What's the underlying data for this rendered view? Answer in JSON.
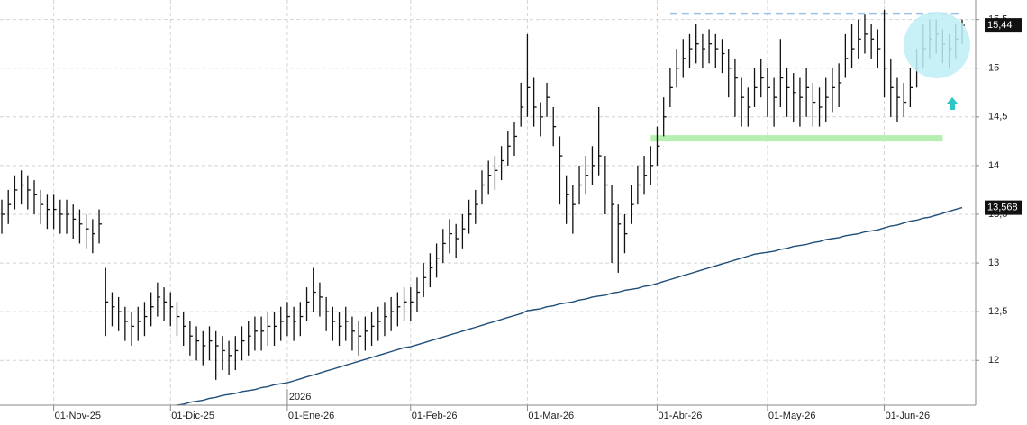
{
  "chart_data": {
    "type": "ohlc",
    "year_marker": "2026",
    "categories": [
      null,
      null,
      null,
      null,
      null,
      null,
      null,
      null,
      "01-Nov-25",
      null,
      null,
      null,
      null,
      null,
      null,
      null,
      null,
      null,
      null,
      null,
      null,
      null,
      null,
      null,
      null,
      null,
      "01-Dic-25",
      null,
      null,
      null,
      null,
      null,
      null,
      null,
      null,
      null,
      null,
      null,
      null,
      null,
      null,
      null,
      null,
      null,
      "01-Ene-26",
      null,
      null,
      null,
      null,
      null,
      null,
      null,
      null,
      null,
      null,
      null,
      null,
      null,
      null,
      null,
      null,
      null,
      null,
      "01-Feb-26",
      null,
      null,
      null,
      null,
      null,
      null,
      null,
      null,
      null,
      null,
      null,
      null,
      null,
      null,
      null,
      null,
      null,
      "01-Mar-26",
      null,
      null,
      null,
      null,
      null,
      null,
      null,
      null,
      null,
      null,
      null,
      null,
      null,
      null,
      null,
      null,
      null,
      null,
      null,
      "01-Abr-26",
      null,
      null,
      null,
      null,
      null,
      null,
      null,
      null,
      null,
      null,
      null,
      null,
      null,
      null,
      null,
      null,
      "01-May-26",
      null,
      null,
      null,
      null,
      null,
      null,
      null,
      null,
      null,
      null,
      null,
      null,
      null,
      null,
      null,
      null,
      null,
      "01-Jun-26",
      null,
      null,
      null,
      null,
      null,
      null,
      null,
      null,
      null,
      null,
      null,
      null
    ],
    "high": [
      13.65,
      13.75,
      13.9,
      13.95,
      13.9,
      13.85,
      13.75,
      13.7,
      13.7,
      13.65,
      13.65,
      13.6,
      13.55,
      13.5,
      13.45,
      13.55,
      12.95,
      12.7,
      12.65,
      12.55,
      12.5,
      12.55,
      12.6,
      12.7,
      12.8,
      12.75,
      12.7,
      12.6,
      12.5,
      12.4,
      12.35,
      12.3,
      12.35,
      12.3,
      12.25,
      12.2,
      12.25,
      12.35,
      12.4,
      12.45,
      12.45,
      12.5,
      12.5,
      12.55,
      12.6,
      12.55,
      12.6,
      12.75,
      12.95,
      12.8,
      12.65,
      12.55,
      12.5,
      12.55,
      12.45,
      12.4,
      12.45,
      12.5,
      12.55,
      12.6,
      12.65,
      12.7,
      12.75,
      12.75,
      12.85,
      13.0,
      13.1,
      13.2,
      13.35,
      13.45,
      13.4,
      13.5,
      13.65,
      13.75,
      13.95,
      14.05,
      14.1,
      14.2,
      14.35,
      14.45,
      14.85,
      15.35,
      14.9,
      14.65,
      14.85,
      14.6,
      14.3,
      13.9,
      13.8,
      14.0,
      14.1,
      14.2,
      14.6,
      14.1,
      13.8,
      13.6,
      13.5,
      13.8,
      14.0,
      14.1,
      14.2,
      14.4,
      14.7,
      15.0,
      15.2,
      15.3,
      15.35,
      15.45,
      15.35,
      15.4,
      15.35,
      15.3,
      15.2,
      15.1,
      14.9,
      14.8,
      15.0,
      15.1,
      15.0,
      14.9,
      15.3,
      15.0,
      14.95,
      14.9,
      15.0,
      14.85,
      14.8,
      14.9,
      15.0,
      15.05,
      15.35,
      15.45,
      15.5,
      15.55,
      15.45,
      15.4,
      15.6,
      15.1,
      14.9,
      14.85,
      15.0,
      15.2,
      15.45,
      15.5,
      15.5,
      15.4,
      15.35,
      15.45,
      15.5
    ],
    "low": [
      13.3,
      13.4,
      13.55,
      13.6,
      13.55,
      13.5,
      13.4,
      13.35,
      13.35,
      13.3,
      13.3,
      13.25,
      13.2,
      13.15,
      13.1,
      13.2,
      12.25,
      12.35,
      12.3,
      12.2,
      12.15,
      12.2,
      12.25,
      12.35,
      12.45,
      12.4,
      12.35,
      12.25,
      12.15,
      12.05,
      12.0,
      11.95,
      12.0,
      11.8,
      11.9,
      11.85,
      11.9,
      12.0,
      12.05,
      12.1,
      12.1,
      12.15,
      12.15,
      12.2,
      12.25,
      12.2,
      12.25,
      12.4,
      12.5,
      12.45,
      12.3,
      12.2,
      12.15,
      12.2,
      12.1,
      12.05,
      12.1,
      12.15,
      12.2,
      12.25,
      12.3,
      12.35,
      12.4,
      12.4,
      12.5,
      12.65,
      12.75,
      12.85,
      13.0,
      13.1,
      13.05,
      13.15,
      13.3,
      13.4,
      13.6,
      13.7,
      13.75,
      13.85,
      14.0,
      14.1,
      14.4,
      14.5,
      14.4,
      14.3,
      14.5,
      14.2,
      13.6,
      13.4,
      13.3,
      13.6,
      13.7,
      13.8,
      13.9,
      13.5,
      13.0,
      12.9,
      13.1,
      13.4,
      13.6,
      13.7,
      13.8,
      14.0,
      14.3,
      14.6,
      14.8,
      14.9,
      15.0,
      15.05,
      15.0,
      15.05,
      15.0,
      14.95,
      14.7,
      14.5,
      14.4,
      14.4,
      14.6,
      14.7,
      14.5,
      14.4,
      14.6,
      14.5,
      14.45,
      14.4,
      14.5,
      14.4,
      14.4,
      14.45,
      14.55,
      14.6,
      14.9,
      15.0,
      15.1,
      15.15,
      15.1,
      15.0,
      14.7,
      14.5,
      14.45,
      14.5,
      14.6,
      14.8,
      15.0,
      15.1,
      15.15,
      15.05,
      15.0,
      15.1,
      15.25
    ],
    "close": [
      13.5,
      13.6,
      13.75,
      13.8,
      13.75,
      13.7,
      13.6,
      13.55,
      13.55,
      13.5,
      13.5,
      13.45,
      13.4,
      13.35,
      13.3,
      13.4,
      12.6,
      12.55,
      12.5,
      12.4,
      12.35,
      12.4,
      12.45,
      12.55,
      12.65,
      12.6,
      12.55,
      12.45,
      12.35,
      12.25,
      12.2,
      12.15,
      12.2,
      12.15,
      12.1,
      12.05,
      12.1,
      12.2,
      12.25,
      12.3,
      12.3,
      12.35,
      12.35,
      12.4,
      12.45,
      12.4,
      12.45,
      12.6,
      12.7,
      12.65,
      12.5,
      12.4,
      12.35,
      12.4,
      12.3,
      12.25,
      12.3,
      12.35,
      12.4,
      12.45,
      12.5,
      12.55,
      12.6,
      12.6,
      12.7,
      12.85,
      12.95,
      13.05,
      13.2,
      13.3,
      13.25,
      13.35,
      13.5,
      13.6,
      13.8,
      13.9,
      13.95,
      14.05,
      14.2,
      14.3,
      14.6,
      14.8,
      14.6,
      14.5,
      14.7,
      14.4,
      14.1,
      13.7,
      13.6,
      13.8,
      13.9,
      14.0,
      14.1,
      13.8,
      13.6,
      13.4,
      13.3,
      13.6,
      13.8,
      13.9,
      14.0,
      14.2,
      14.5,
      14.8,
      15.0,
      15.1,
      15.2,
      15.25,
      15.2,
      15.25,
      15.2,
      15.15,
      15.0,
      14.9,
      14.7,
      14.6,
      14.8,
      14.9,
      14.8,
      14.7,
      14.9,
      14.8,
      14.75,
      14.7,
      14.8,
      14.65,
      14.6,
      14.7,
      14.8,
      14.85,
      15.1,
      15.2,
      15.3,
      15.35,
      15.3,
      15.2,
      15.0,
      14.8,
      14.7,
      14.65,
      14.8,
      15.0,
      15.2,
      15.3,
      15.35,
      15.25,
      15.2,
      15.3,
      15.44
    ],
    "bar_color": "#111111",
    "sma": {
      "color": "#1f4e79",
      "values": [
        null,
        null,
        null,
        null,
        null,
        null,
        null,
        null,
        null,
        null,
        null,
        null,
        null,
        null,
        null,
        null,
        null,
        null,
        null,
        null,
        null,
        null,
        null,
        null,
        null,
        null,
        null,
        11.54,
        11.55,
        11.57,
        11.58,
        11.59,
        11.61,
        11.62,
        11.64,
        11.65,
        11.66,
        11.68,
        11.69,
        11.7,
        11.72,
        11.73,
        11.75,
        11.76,
        11.77,
        11.79,
        11.81,
        11.83,
        11.85,
        11.87,
        11.89,
        11.91,
        11.93,
        11.95,
        11.97,
        11.99,
        12.01,
        12.03,
        12.05,
        12.07,
        12.09,
        12.11,
        12.13,
        12.14,
        12.16,
        12.18,
        12.2,
        12.22,
        12.24,
        12.26,
        12.28,
        12.3,
        12.32,
        12.34,
        12.36,
        12.38,
        12.4,
        12.42,
        12.44,
        12.46,
        12.48,
        12.51,
        12.52,
        12.53,
        12.55,
        12.56,
        12.58,
        12.59,
        12.6,
        12.62,
        12.63,
        12.65,
        12.66,
        12.67,
        12.69,
        12.7,
        12.72,
        12.73,
        12.74,
        12.76,
        12.77,
        12.79,
        12.81,
        12.83,
        12.85,
        12.87,
        12.89,
        12.91,
        12.93,
        12.95,
        12.97,
        12.99,
        13.01,
        13.03,
        13.05,
        13.07,
        13.09,
        13.1,
        13.11,
        13.12,
        13.14,
        13.15,
        13.17,
        13.18,
        13.19,
        13.21,
        13.22,
        13.24,
        13.25,
        13.26,
        13.28,
        13.29,
        13.3,
        13.32,
        13.33,
        13.34,
        13.36,
        13.38,
        13.39,
        13.41,
        13.43,
        13.44,
        13.46,
        13.47,
        13.49,
        13.51,
        13.53,
        13.55,
        13.568
      ]
    },
    "price_labels": [
      {
        "value": 15.44,
        "label": "15,44"
      },
      {
        "value": 13.568,
        "label": "13,568"
      }
    ],
    "resistance": {
      "value": 15.56,
      "color": "#9cc3e6"
    },
    "support": {
      "value": 14.28,
      "color": "#b6f0b0"
    },
    "ylim": [
      11.54,
      15.7
    ],
    "yticks": [
      12,
      {
        "value": 12.5,
        "label": "12,5"
      },
      13,
      {
        "value": 13.5,
        "label": "13,5"
      },
      14,
      {
        "value": 14.5,
        "label": "14,5"
      },
      15,
      {
        "value": 15.5,
        "label": "15,5"
      }
    ],
    "grid": true
  }
}
